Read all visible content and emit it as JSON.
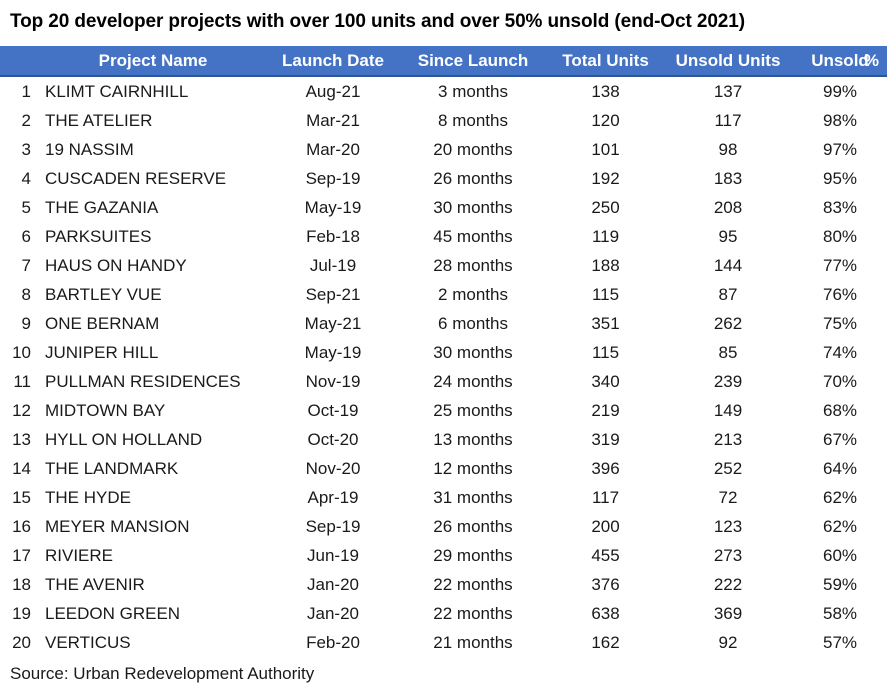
{
  "title": "Top 20 developer projects with over 100 units and over 50% unsold (end-Oct 2021)",
  "source": "Source: Urban Redevelopment Authority",
  "colors": {
    "header_bg": "#4472C4",
    "header_border": "#2F5597",
    "header_text": "#FFFFFF",
    "body_text": "#1a1a1a",
    "title_text": "#000000"
  },
  "chart_data": {
    "type": "table",
    "title": "Top 20 developer projects with over 100 units and over 50% unsold (end-Oct 2021)",
    "columns": [
      "Project Name",
      "Launch Date",
      "Since Launch",
      "Total Units",
      "Unsold Units",
      "Unsold %"
    ],
    "header_display": {
      "unsold": "Unsold",
      "percent": "%"
    },
    "rows": [
      {
        "rank": 1,
        "project_name": "KLIMT CAIRNHILL",
        "launch_date": "Aug-21",
        "since_launch": "3 months",
        "total_units": 138,
        "unsold_units": 137,
        "unsold_pct": "99%"
      },
      {
        "rank": 2,
        "project_name": "THE ATELIER",
        "launch_date": "Mar-21",
        "since_launch": "8 months",
        "total_units": 120,
        "unsold_units": 117,
        "unsold_pct": "98%"
      },
      {
        "rank": 3,
        "project_name": "19 NASSIM",
        "launch_date": "Mar-20",
        "since_launch": "20 months",
        "total_units": 101,
        "unsold_units": 98,
        "unsold_pct": "97%"
      },
      {
        "rank": 4,
        "project_name": "CUSCADEN RESERVE",
        "launch_date": "Sep-19",
        "since_launch": "26 months",
        "total_units": 192,
        "unsold_units": 183,
        "unsold_pct": "95%"
      },
      {
        "rank": 5,
        "project_name": "THE GAZANIA",
        "launch_date": "May-19",
        "since_launch": "30 months",
        "total_units": 250,
        "unsold_units": 208,
        "unsold_pct": "83%"
      },
      {
        "rank": 6,
        "project_name": "PARKSUITES",
        "launch_date": "Feb-18",
        "since_launch": "45 months",
        "total_units": 119,
        "unsold_units": 95,
        "unsold_pct": "80%"
      },
      {
        "rank": 7,
        "project_name": "HAUS ON HANDY",
        "launch_date": "Jul-19",
        "since_launch": "28 months",
        "total_units": 188,
        "unsold_units": 144,
        "unsold_pct": "77%"
      },
      {
        "rank": 8,
        "project_name": "BARTLEY VUE",
        "launch_date": "Sep-21",
        "since_launch": "2 months",
        "total_units": 115,
        "unsold_units": 87,
        "unsold_pct": "76%"
      },
      {
        "rank": 9,
        "project_name": "ONE BERNAM",
        "launch_date": "May-21",
        "since_launch": "6 months",
        "total_units": 351,
        "unsold_units": 262,
        "unsold_pct": "75%"
      },
      {
        "rank": 10,
        "project_name": "JUNIPER HILL",
        "launch_date": "May-19",
        "since_launch": "30 months",
        "total_units": 115,
        "unsold_units": 85,
        "unsold_pct": "74%"
      },
      {
        "rank": 11,
        "project_name": "PULLMAN RESIDENCES",
        "launch_date": "Nov-19",
        "since_launch": "24 months",
        "total_units": 340,
        "unsold_units": 239,
        "unsold_pct": "70%"
      },
      {
        "rank": 12,
        "project_name": "MIDTOWN BAY",
        "launch_date": "Oct-19",
        "since_launch": "25 months",
        "total_units": 219,
        "unsold_units": 149,
        "unsold_pct": "68%"
      },
      {
        "rank": 13,
        "project_name": "HYLL ON HOLLAND",
        "launch_date": "Oct-20",
        "since_launch": "13 months",
        "total_units": 319,
        "unsold_units": 213,
        "unsold_pct": "67%"
      },
      {
        "rank": 14,
        "project_name": "THE LANDMARK",
        "launch_date": "Nov-20",
        "since_launch": "12 months",
        "total_units": 396,
        "unsold_units": 252,
        "unsold_pct": "64%"
      },
      {
        "rank": 15,
        "project_name": "THE HYDE",
        "launch_date": "Apr-19",
        "since_launch": "31 months",
        "total_units": 117,
        "unsold_units": 72,
        "unsold_pct": "62%"
      },
      {
        "rank": 16,
        "project_name": "MEYER MANSION",
        "launch_date": "Sep-19",
        "since_launch": "26 months",
        "total_units": 200,
        "unsold_units": 123,
        "unsold_pct": "62%"
      },
      {
        "rank": 17,
        "project_name": "RIVIERE",
        "launch_date": "Jun-19",
        "since_launch": "29 months",
        "total_units": 455,
        "unsold_units": 273,
        "unsold_pct": "60%"
      },
      {
        "rank": 18,
        "project_name": "THE AVENIR",
        "launch_date": "Jan-20",
        "since_launch": "22 months",
        "total_units": 376,
        "unsold_units": 222,
        "unsold_pct": "59%"
      },
      {
        "rank": 19,
        "project_name": "LEEDON GREEN",
        "launch_date": "Jan-20",
        "since_launch": "22 months",
        "total_units": 638,
        "unsold_units": 369,
        "unsold_pct": "58%"
      },
      {
        "rank": 20,
        "project_name": "VERTICUS",
        "launch_date": "Feb-20",
        "since_launch": "21 months",
        "total_units": 162,
        "unsold_units": 92,
        "unsold_pct": "57%"
      }
    ],
    "source": "Source: Urban Redevelopment Authority"
  }
}
